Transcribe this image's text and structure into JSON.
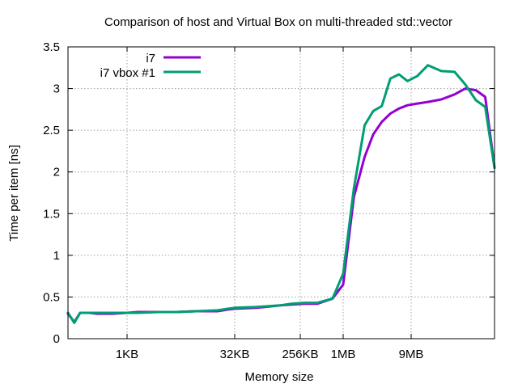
{
  "chart_data": {
    "type": "line",
    "title": "Comparison of host and Virtual Box on multi-threaded std::vector",
    "xlabel": "Memory size",
    "ylabel": "Time per item [ns]",
    "xscale": "log2",
    "xlim_log2": [
      6,
      23.4
    ],
    "ylim": [
      0,
      3.5
    ],
    "grid": true,
    "legend_position": "top-left",
    "x_ticks": [
      {
        "label": "1KB",
        "log2": 10
      },
      {
        "label": "32KB",
        "log2": 15
      },
      {
        "label": "256KB",
        "log2": 18
      },
      {
        "label": "1MB",
        "log2": 20
      },
      {
        "label": "9MB",
        "log2": 23.17
      }
    ],
    "y_ticks": [
      {
        "label": "0",
        "value": 0
      },
      {
        "label": "0.5",
        "value": 0.5
      },
      {
        "label": "1",
        "value": 1
      },
      {
        "label": "1.5",
        "value": 1.5
      },
      {
        "label": "2",
        "value": 2
      },
      {
        "label": "2.5",
        "value": 2.5
      },
      {
        "label": "3",
        "value": 3
      },
      {
        "label": "3.5",
        "value": 3.5
      }
    ],
    "series": [
      {
        "name": "i7",
        "color": "#9400d3",
        "points": [
          [
            6,
            0.3
          ],
          [
            6.43,
            0.2
          ],
          [
            6.82,
            0.31
          ],
          [
            7.4,
            0.31
          ],
          [
            8.0,
            0.3
          ],
          [
            9.0,
            0.3
          ],
          [
            10.0,
            0.31
          ],
          [
            10.5,
            0.32
          ],
          [
            11.5,
            0.32
          ],
          [
            12.3,
            0.32
          ],
          [
            13.2,
            0.33
          ],
          [
            14.2,
            0.33
          ],
          [
            14.7,
            0.35
          ],
          [
            15.0,
            0.36
          ],
          [
            16.0,
            0.37
          ],
          [
            17.1,
            0.4
          ],
          [
            17.6,
            0.41
          ],
          [
            18.2,
            0.42
          ],
          [
            18.8,
            0.42
          ],
          [
            19.5,
            0.48
          ],
          [
            20.0,
            0.65
          ],
          [
            20.5,
            1.7
          ],
          [
            21.0,
            2.18
          ],
          [
            21.4,
            2.45
          ],
          [
            21.8,
            2.6
          ],
          [
            22.2,
            2.7
          ],
          [
            22.6,
            2.76
          ],
          [
            23.0,
            2.8
          ],
          [
            23.4,
            2.82
          ],
          [
            23.8,
            2.84
          ],
          [
            24.3,
            2.87
          ],
          [
            24.8,
            2.93
          ],
          [
            25.2,
            3.0
          ],
          [
            25.6,
            2.98
          ],
          [
            25.95,
            2.9
          ],
          [
            26.3,
            2.05
          ]
        ]
      },
      {
        "name": "i7 vbox #1",
        "color": "#009e73",
        "points": [
          [
            6,
            0.31
          ],
          [
            6.43,
            0.19
          ],
          [
            6.82,
            0.31
          ],
          [
            7.4,
            0.31
          ],
          [
            8.0,
            0.31
          ],
          [
            9.0,
            0.31
          ],
          [
            10.0,
            0.31
          ],
          [
            10.5,
            0.31
          ],
          [
            11.5,
            0.32
          ],
          [
            12.3,
            0.32
          ],
          [
            13.2,
            0.33
          ],
          [
            14.2,
            0.34
          ],
          [
            14.7,
            0.36
          ],
          [
            15.0,
            0.37
          ],
          [
            16.0,
            0.38
          ],
          [
            17.1,
            0.4
          ],
          [
            17.6,
            0.42
          ],
          [
            18.2,
            0.43
          ],
          [
            18.8,
            0.43
          ],
          [
            19.5,
            0.48
          ],
          [
            20.0,
            0.78
          ],
          [
            20.5,
            1.8
          ],
          [
            21.0,
            2.56
          ],
          [
            21.4,
            2.73
          ],
          [
            21.8,
            2.79
          ],
          [
            22.2,
            3.12
          ],
          [
            22.6,
            3.17
          ],
          [
            23.0,
            3.09
          ],
          [
            23.4,
            3.15
          ],
          [
            23.8,
            3.28
          ],
          [
            24.3,
            3.21
          ],
          [
            24.8,
            3.2
          ],
          [
            25.2,
            3.05
          ],
          [
            25.6,
            2.86
          ],
          [
            25.95,
            2.78
          ],
          [
            26.3,
            2.05
          ]
        ]
      }
    ]
  }
}
